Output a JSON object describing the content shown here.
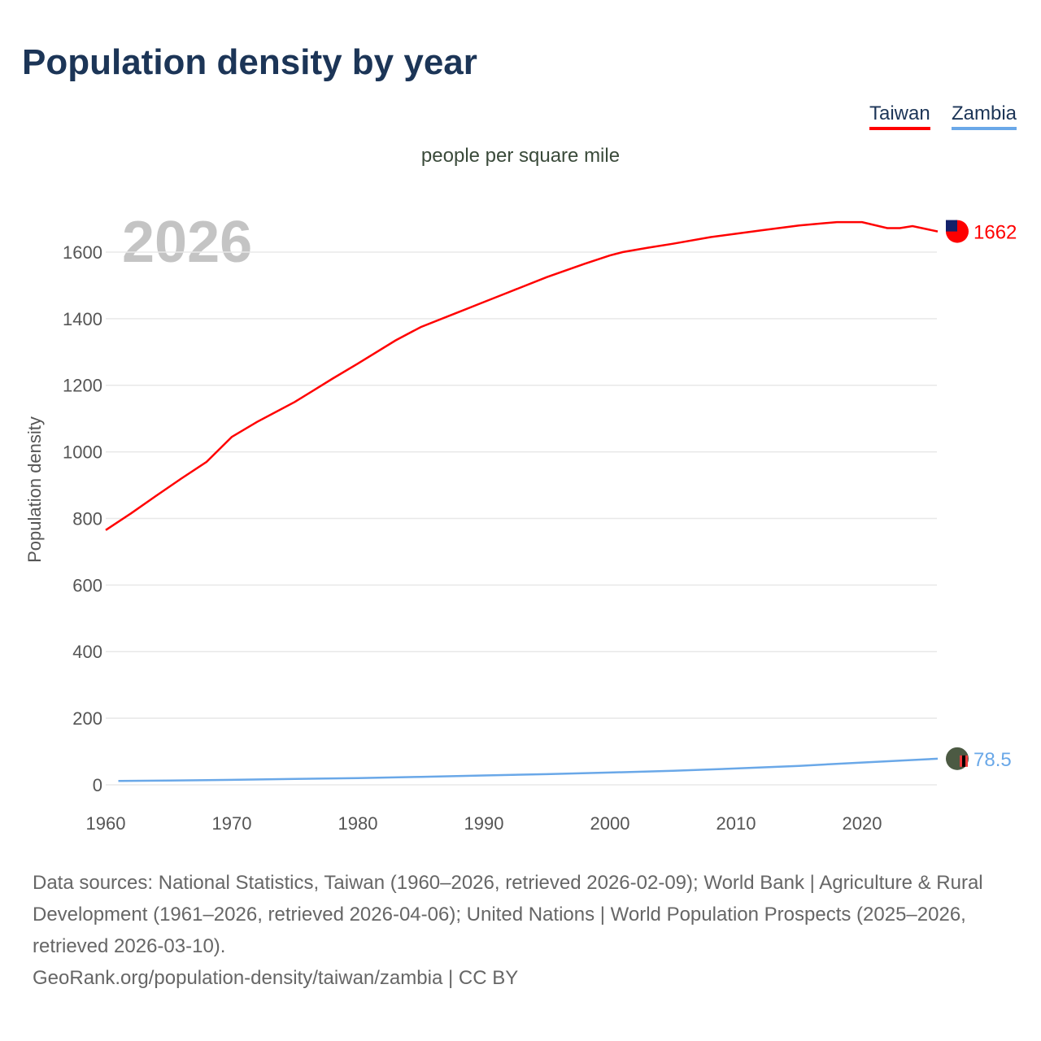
{
  "title": "Population density by year",
  "legend": [
    {
      "label": "Taiwan",
      "color": "#ff0000"
    },
    {
      "label": "Zambia",
      "color": "#6aa8e8"
    }
  ],
  "unit_label": "people per square mile",
  "year_watermark": "2026",
  "footer": {
    "sources": "Data sources: National Statistics, Taiwan (1960–2026, retrieved 2026-02-09); World Bank | Agriculture & Rural Development (1961–2026, retrieved 2026-04-06); United Nations | World Population Prospects (2025–2026, retrieved 2026-03-10).",
    "link": "GeoRank.org/population-density/taiwan/zambia | CC BY"
  },
  "chart_data": {
    "type": "line",
    "title": "Population density by year",
    "xlabel": "",
    "ylabel": "Population density",
    "xlim": [
      1960,
      2026
    ],
    "ylim": [
      0,
      1700
    ],
    "xticks": [
      1960,
      1970,
      1980,
      1990,
      2000,
      2010,
      2020
    ],
    "yticks": [
      0,
      200,
      400,
      600,
      800,
      1000,
      1200,
      1400,
      1600
    ],
    "grid": true,
    "legend_position": "top-right",
    "series": [
      {
        "name": "Taiwan",
        "color": "#ff0000",
        "end_label": "1662",
        "x": [
          1960,
          1962,
          1964,
          1966,
          1968,
          1970,
          1972,
          1975,
          1978,
          1980,
          1983,
          1985,
          1988,
          1990,
          1992,
          1995,
          1998,
          2000,
          2001,
          2003,
          2005,
          2008,
          2010,
          2012,
          2015,
          2018,
          2020,
          2022,
          2023,
          2024,
          2026
        ],
        "y": [
          765,
          815,
          868,
          920,
          970,
          1045,
          1090,
          1150,
          1220,
          1265,
          1335,
          1375,
          1420,
          1450,
          1480,
          1525,
          1565,
          1590,
          1600,
          1613,
          1625,
          1645,
          1655,
          1665,
          1680,
          1690,
          1690,
          1672,
          1672,
          1678,
          1662
        ]
      },
      {
        "name": "Zambia",
        "color": "#6aa8e8",
        "end_label": "78.5",
        "x": [
          1961,
          1965,
          1970,
          1975,
          1980,
          1985,
          1990,
          1995,
          2000,
          2005,
          2010,
          2015,
          2020,
          2026
        ],
        "y": [
          11.5,
          13,
          15,
          17.5,
          20,
          24,
          28,
          32,
          37,
          42,
          49,
          57,
          67,
          78.5
        ]
      }
    ]
  }
}
